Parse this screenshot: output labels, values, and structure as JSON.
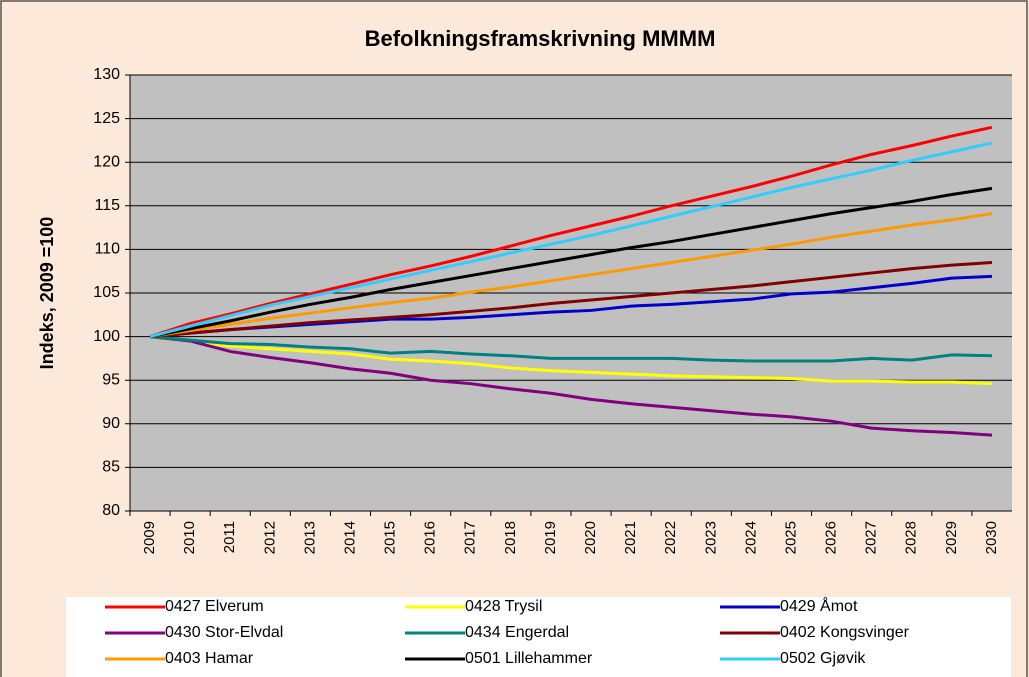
{
  "chart_data": {
    "type": "line",
    "title": "Befolkningsframskrivning MMMM",
    "y_label": "Indeks, 2009 =100",
    "categories": [
      "2009",
      "2010",
      "2011",
      "2012",
      "2013",
      "2014",
      "2015",
      "2016",
      "2017",
      "2018",
      "2019",
      "2020",
      "2021",
      "2022",
      "2023",
      "2024",
      "2025",
      "2026",
      "2027",
      "2028",
      "2029",
      "2030"
    ],
    "ylim": [
      80,
      130
    ],
    "yticks": [
      80,
      85,
      90,
      95,
      100,
      105,
      110,
      115,
      120,
      125,
      130
    ],
    "grid": true,
    "series": [
      {
        "name": "0427 Elverum",
        "color": "#ff0000",
        "values": [
          100,
          101.5,
          102.6,
          103.8,
          104.9,
          106,
          107.1,
          108.1,
          109.2,
          110.4,
          111.6,
          112.7,
          113.8,
          115,
          116.1,
          117.2,
          118.4,
          119.7,
          120.9,
          121.9,
          123,
          124
        ]
      },
      {
        "name": "0428 Trysil",
        "color": "#ffff00",
        "values": [
          100,
          99.5,
          98.9,
          98.6,
          98.3,
          98,
          97.4,
          97.2,
          96.9,
          96.4,
          96.1,
          95.9,
          95.7,
          95.5,
          95.4,
          95.3,
          95.2,
          94.9,
          94.9,
          94.8,
          94.8,
          94.6
        ]
      },
      {
        "name": "0429 Åmot",
        "color": "#0000cc",
        "values": [
          100,
          100.4,
          100.8,
          101.1,
          101.4,
          101.7,
          102,
          102,
          102.2,
          102.5,
          102.8,
          103,
          103.5,
          103.7,
          104,
          104.3,
          104.9,
          105.1,
          105.6,
          106.1,
          106.7,
          106.9
        ]
      },
      {
        "name": "0430 Stor-Elvdal",
        "color": "#800080",
        "values": [
          100,
          99.5,
          98.3,
          97.6,
          97,
          96.3,
          95.8,
          95,
          94.6,
          94,
          93.5,
          92.8,
          92.3,
          91.9,
          91.5,
          91.1,
          90.8,
          90.3,
          89.5,
          89.2,
          89,
          88.7
        ]
      },
      {
        "name": "0434 Engerdal",
        "color": "#008080",
        "values": [
          100,
          99.6,
          99.2,
          99.1,
          98.8,
          98.6,
          98.1,
          98.3,
          98,
          97.8,
          97.5,
          97.5,
          97.5,
          97.5,
          97.3,
          97.2,
          97.2,
          97.2,
          97.5,
          97.3,
          97.9,
          97.8
        ]
      },
      {
        "name": "0402 Kongsvinger",
        "color": "#800000",
        "values": [
          100,
          100.4,
          100.8,
          101.2,
          101.6,
          101.9,
          102.2,
          102.5,
          102.9,
          103.3,
          103.8,
          104.2,
          104.6,
          105,
          105.4,
          105.8,
          106.3,
          106.8,
          107.3,
          107.8,
          108.2,
          108.5
        ]
      },
      {
        "name": "0403 Hamar",
        "color": "#ff9900",
        "values": [
          100,
          100.7,
          101.4,
          102.1,
          102.7,
          103.3,
          103.9,
          104.4,
          105.1,
          105.7,
          106.4,
          107.1,
          107.8,
          108.5,
          109.2,
          109.9,
          110.6,
          111.4,
          112.1,
          112.8,
          113.4,
          114.1
        ]
      },
      {
        "name": "0501 Lillehammer",
        "color": "#000000",
        "values": [
          100,
          100.9,
          101.8,
          102.8,
          103.7,
          104.5,
          105.4,
          106.2,
          107,
          107.8,
          108.6,
          109.4,
          110.2,
          110.9,
          111.7,
          112.5,
          113.3,
          114.1,
          114.8,
          115.5,
          116.3,
          117
        ]
      },
      {
        "name": "0502 Gjøvik",
        "color": "#33ccff",
        "values": [
          100,
          101.2,
          102.4,
          103.6,
          104.6,
          105.6,
          106.6,
          107.6,
          108.6,
          109.6,
          110.6,
          111.6,
          112.7,
          113.8,
          114.9,
          116,
          117.1,
          118.1,
          119.1,
          120.2,
          121.2,
          122.2
        ]
      }
    ]
  }
}
